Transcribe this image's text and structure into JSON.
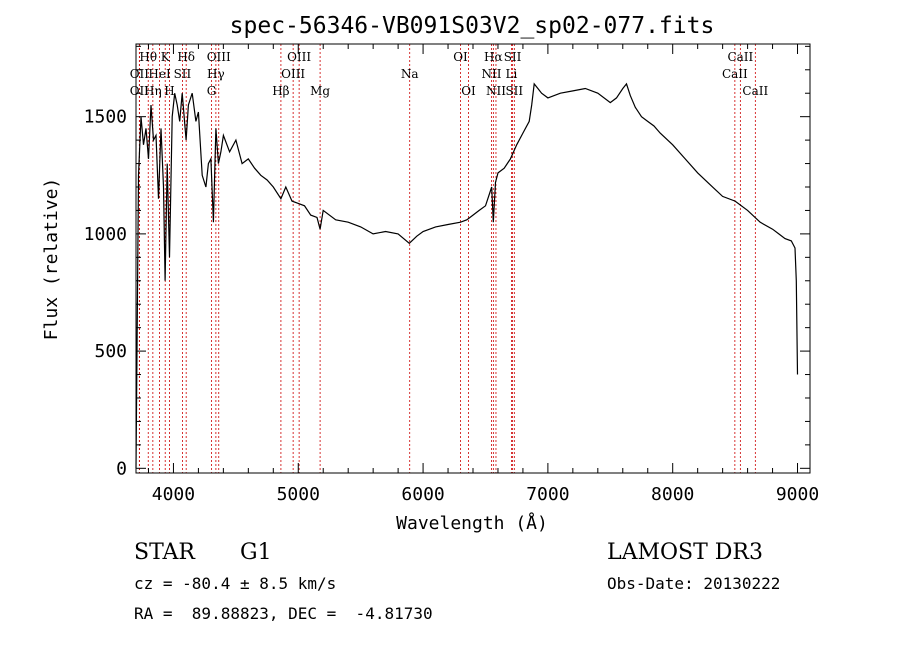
{
  "chart_data": {
    "type": "line",
    "title": "spec-56346-VB091S03V2_sp02-077.fits",
    "xlabel": "Wavelength (Å)",
    "ylabel": "Flux (relative)",
    "xlim": [
      3700,
      9100
    ],
    "ylim": [
      -20,
      1810
    ],
    "xticks": [
      4000,
      5000,
      6000,
      7000,
      8000,
      9000
    ],
    "xtick_labels": [
      "4000",
      "5000",
      "6000",
      "7000",
      "8000",
      "9000"
    ],
    "yticks": [
      0,
      500,
      1000,
      1500
    ],
    "ytick_labels": [
      "0",
      "500",
      "1000",
      "1500"
    ],
    "series": [
      {
        "name": "spectrum",
        "x": [
          3700,
          3720,
          3740,
          3760,
          3780,
          3800,
          3820,
          3840,
          3860,
          3880,
          3900,
          3920,
          3933,
          3950,
          3968,
          3990,
          4010,
          4030,
          4050,
          4070,
          4101,
          4120,
          4150,
          4180,
          4200,
          4230,
          4260,
          4280,
          4300,
          4320,
          4340,
          4360,
          4380,
          4400,
          4450,
          4500,
          4550,
          4600,
          4650,
          4700,
          4750,
          4800,
          4861,
          4900,
          4950,
          5000,
          5050,
          5100,
          5150,
          5175,
          5200,
          5300,
          5400,
          5500,
          5600,
          5700,
          5800,
          5890,
          5950,
          6000,
          6100,
          6200,
          6300,
          6350,
          6400,
          6450,
          6500,
          6550,
          6563,
          6580,
          6600,
          6650,
          6700,
          6750,
          6800,
          6850,
          6870,
          6890,
          6920,
          6950,
          7000,
          7100,
          7200,
          7300,
          7400,
          7500,
          7550,
          7600,
          7630,
          7660,
          7700,
          7750,
          7800,
          7850,
          7900,
          8000,
          8100,
          8200,
          8300,
          8400,
          8500,
          8600,
          8700,
          8800,
          8850,
          8900,
          8950,
          8980,
          8990,
          9000
        ],
        "values": [
          0,
          1250,
          1500,
          1380,
          1450,
          1320,
          1550,
          1400,
          1420,
          1150,
          1450,
          1200,
          800,
          1300,
          900,
          1500,
          1600,
          1550,
          1480,
          1600,
          1400,
          1550,
          1600,
          1480,
          1520,
          1250,
          1200,
          1300,
          1320,
          1050,
          1450,
          1300,
          1350,
          1420,
          1350,
          1400,
          1300,
          1320,
          1280,
          1250,
          1230,
          1200,
          1150,
          1200,
          1140,
          1130,
          1120,
          1080,
          1070,
          1020,
          1100,
          1060,
          1050,
          1030,
          1000,
          1010,
          1000,
          960,
          990,
          1010,
          1030,
          1040,
          1050,
          1060,
          1080,
          1100,
          1120,
          1200,
          1050,
          1220,
          1260,
          1280,
          1320,
          1380,
          1430,
          1480,
          1550,
          1640,
          1620,
          1600,
          1580,
          1600,
          1610,
          1620,
          1600,
          1560,
          1580,
          1620,
          1640,
          1590,
          1540,
          1500,
          1480,
          1460,
          1430,
          1380,
          1320,
          1260,
          1210,
          1160,
          1140,
          1100,
          1050,
          1020,
          1000,
          980,
          970,
          940,
          800,
          400
        ]
      }
    ],
    "emission_lines": [
      {
        "label": "OII",
        "wave": 3727,
        "row": 3
      },
      {
        "label": "Hθ",
        "wave": 3798,
        "row": 1
      },
      {
        "label": "OII",
        "wave": 3727,
        "row": 2
      },
      {
        "label": "Hη",
        "wave": 3835,
        "row": 3
      },
      {
        "label": "HeI",
        "wave": 3889,
        "row": 2
      },
      {
        "label": "K",
        "wave": 3934,
        "row": 1
      },
      {
        "label": "H",
        "wave": 3968,
        "row": 3
      },
      {
        "label": "SII",
        "wave": 4072,
        "row": 2
      },
      {
        "label": "Hδ",
        "wave": 4102,
        "row": 1
      },
      {
        "label": "OIII",
        "wave": 4363,
        "row": 1
      },
      {
        "label": "Hγ",
        "wave": 4340,
        "row": 2
      },
      {
        "label": "G",
        "wave": 4305,
        "row": 3
      },
      {
        "label": "Hβ",
        "wave": 4861,
        "row": 3
      },
      {
        "label": "OIII",
        "wave": 4959,
        "row": 2
      },
      {
        "label": "OIII",
        "wave": 5007,
        "row": 1
      },
      {
        "label": "Mg",
        "wave": 5175,
        "row": 3
      },
      {
        "label": "Na",
        "wave": 5893,
        "row": 2
      },
      {
        "label": "OI",
        "wave": 6300,
        "row": 1
      },
      {
        "label": "OI",
        "wave": 6364,
        "row": 3
      },
      {
        "label": "Hα",
        "wave": 6563,
        "row": 1
      },
      {
        "label": "NII",
        "wave": 6548,
        "row": 2
      },
      {
        "label": "NII",
        "wave": 6584,
        "row": 3
      },
      {
        "label": "SII",
        "wave": 6717,
        "row": 1
      },
      {
        "label": "Li",
        "wave": 6708,
        "row": 2
      },
      {
        "label": "SII",
        "wave": 6731,
        "row": 3
      },
      {
        "label": "CaII",
        "wave": 8498,
        "row": 2
      },
      {
        "label": "CaII",
        "wave": 8542,
        "row": 1
      },
      {
        "label": "CaII",
        "wave": 8662,
        "row": 3
      }
    ],
    "grid": false,
    "line_color": "#000000",
    "marker_color": "#cc0000"
  },
  "info": {
    "object_class": "STAR",
    "subclass": "G1",
    "survey": "LAMOST DR3",
    "cz": "cz = -80.4 ± 8.5 km/s",
    "obs_date": "Obs-Date: 20130222",
    "coords": "RA =  89.88823, DEC =  -4.81730"
  }
}
